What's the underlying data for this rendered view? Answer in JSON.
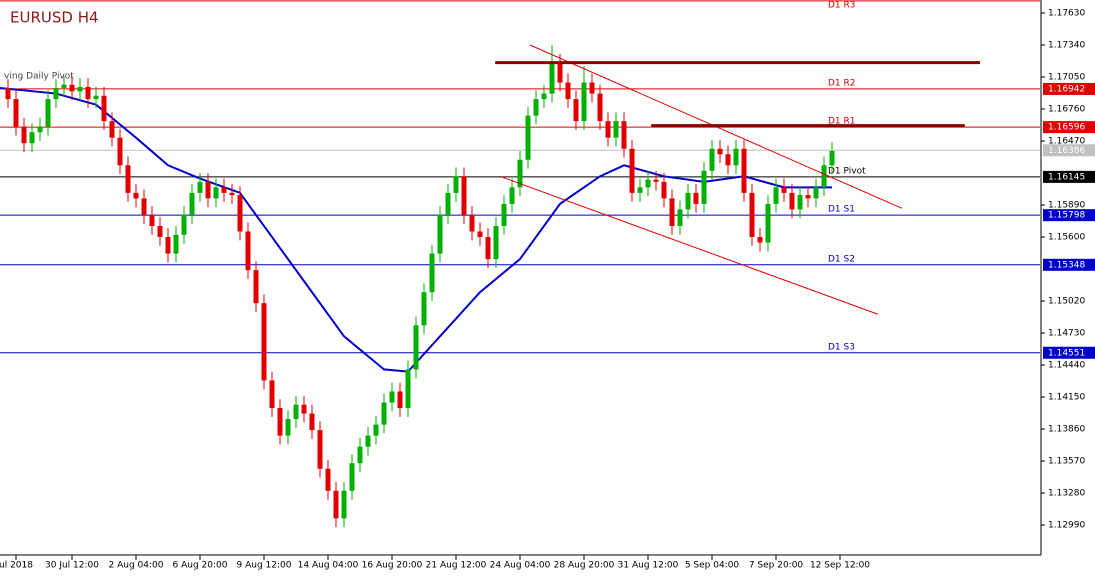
{
  "chart_data": {
    "type": "candlestick",
    "title": "EURUSD H4",
    "indicator_label": "ving Daily Pivot",
    "up_color": "#00b000",
    "down_color": "#e00000",
    "xlim": [
      -1,
      129
    ],
    "ylim": [
      1.12718,
      1.17748
    ],
    "yticks": [
      {
        "value": 1.1763,
        "label": "1.17630"
      },
      {
        "value": 1.1734,
        "label": "1.17340"
      },
      {
        "value": 1.1705,
        "label": "1.17050"
      },
      {
        "value": 1.1676,
        "label": "1.16760"
      },
      {
        "value": 1.1647,
        "label": "1.16470"
      },
      {
        "value": 1.1589,
        "label": "1.15890"
      },
      {
        "value": 1.156,
        "label": "1.15600"
      },
      {
        "value": 1.1502,
        "label": "1.15020"
      },
      {
        "value": 1.1473,
        "label": "1.14730"
      },
      {
        "value": 1.1444,
        "label": "1.14440"
      },
      {
        "value": 1.1415,
        "label": "1.14150"
      },
      {
        "value": 1.1386,
        "label": "1.13860"
      },
      {
        "value": 1.1357,
        "label": "1.13570"
      },
      {
        "value": 1.1328,
        "label": "1.13280"
      },
      {
        "value": 1.1299,
        "label": "1.12990"
      }
    ],
    "xticks": [
      {
        "value": 1,
        "label": "ul 2018"
      },
      {
        "value": 8,
        "label": "30 Jul 12:00"
      },
      {
        "value": 16,
        "label": "2 Aug 04:00"
      },
      {
        "value": 24,
        "label": "6 Aug 20:00"
      },
      {
        "value": 32,
        "label": "9 Aug 12:00"
      },
      {
        "value": 40,
        "label": "14 Aug 04:00"
      },
      {
        "value": 48,
        "label": "16 Aug 20:00"
      },
      {
        "value": 56,
        "label": "21 Aug 12:00"
      },
      {
        "value": 64,
        "label": "24 Aug 04:00"
      },
      {
        "value": 72,
        "label": "28 Aug 20:00"
      },
      {
        "value": 80,
        "label": "31 Aug 12:00"
      },
      {
        "value": 88,
        "label": "5 Sep 04:00"
      },
      {
        "value": 96,
        "label": "7 Sep 20:00"
      },
      {
        "value": 104,
        "label": "12 Sep 12:00"
      }
    ],
    "open": [
      1.1695,
      1.1685,
      1.166,
      1.1645,
      1.1655,
      1.166,
      1.1685,
      1.1695,
      1.1698,
      1.1692,
      1.1696,
      1.1685,
      1.1688,
      1.1665,
      1.165,
      1.1625,
      1.16,
      1.1595,
      1.158,
      1.157,
      1.156,
      1.1545,
      1.1562,
      1.158,
      1.16,
      1.161,
      1.1595,
      1.1605,
      1.16,
      1.1598,
      1.1565,
      1.153,
      1.15,
      1.143,
      1.1405,
      1.138,
      1.1395,
      1.1408,
      1.14,
      1.1385,
      1.135,
      1.133,
      1.1305,
      1.133,
      1.1355,
      1.137,
      1.138,
      1.139,
      1.141,
      1.142,
      1.1405,
      1.144,
      1.148,
      1.151,
      1.1545,
      1.158,
      1.16,
      1.1615,
      1.158,
      1.1565,
      1.156,
      1.154,
      1.157,
      1.159,
      1.1605,
      1.163,
      1.167,
      1.1685,
      1.169,
      1.1718,
      1.17,
      1.1685,
      1.1665,
      1.17,
      1.169,
      1.1665,
      1.165,
      1.1665,
      1.164,
      1.16,
      1.1605,
      1.1612,
      1.161,
      1.1595,
      1.157,
      1.1585,
      1.16,
      1.159,
      1.162,
      1.164,
      1.1635,
      1.1625,
      1.164,
      1.16,
      1.156,
      1.1555,
      1.159,
      1.1605,
      1.16,
      1.1585,
      1.1598,
      1.1595,
      1.1605,
      1.1625
    ],
    "high": [
      1.1703,
      1.1693,
      1.1668,
      1.1663,
      1.1668,
      1.1693,
      1.1703,
      1.1706,
      1.1706,
      1.1704,
      1.1704,
      1.1696,
      1.1696,
      1.1673,
      1.1658,
      1.1633,
      1.1608,
      1.1603,
      1.1588,
      1.1578,
      1.1568,
      1.157,
      1.1588,
      1.1608,
      1.1618,
      1.1618,
      1.1613,
      1.1613,
      1.1608,
      1.1606,
      1.1573,
      1.1538,
      1.1508,
      1.1438,
      1.1413,
      1.1403,
      1.1416,
      1.1416,
      1.1408,
      1.1393,
      1.1358,
      1.1338,
      1.1338,
      1.1363,
      1.1378,
      1.1388,
      1.1398,
      1.1418,
      1.1428,
      1.1428,
      1.1448,
      1.1488,
      1.1518,
      1.1553,
      1.1588,
      1.1608,
      1.1623,
      1.1623,
      1.1588,
      1.1573,
      1.1568,
      1.1578,
      1.1598,
      1.1613,
      1.1638,
      1.1678,
      1.1693,
      1.1698,
      1.1734,
      1.1726,
      1.1708,
      1.1693,
      1.1715,
      1.1708,
      1.1698,
      1.1673,
      1.1673,
      1.1673,
      1.1648,
      1.1613,
      1.162,
      1.162,
      1.1618,
      1.1603,
      1.1593,
      1.1608,
      1.1608,
      1.1628,
      1.1648,
      1.1648,
      1.1643,
      1.1648,
      1.1648,
      1.1608,
      1.1568,
      1.1598,
      1.1613,
      1.1613,
      1.1608,
      1.1606,
      1.1606,
      1.1613,
      1.1633,
      1.1646
    ],
    "low": [
      1.1677,
      1.1652,
      1.1637,
      1.1637,
      1.1647,
      1.1652,
      1.1677,
      1.1687,
      1.1684,
      1.1684,
      1.1677,
      1.1677,
      1.1657,
      1.1642,
      1.1617,
      1.1592,
      1.1587,
      1.1572,
      1.1562,
      1.1552,
      1.1537,
      1.1537,
      1.1554,
      1.1572,
      1.1592,
      1.1587,
      1.1587,
      1.1592,
      1.159,
      1.1557,
      1.1522,
      1.1492,
      1.1422,
      1.1397,
      1.1372,
      1.1372,
      1.1387,
      1.1392,
      1.1377,
      1.1342,
      1.1322,
      1.1297,
      1.1297,
      1.1322,
      1.1347,
      1.1362,
      1.1372,
      1.1382,
      1.1402,
      1.1397,
      1.1397,
      1.1432,
      1.1472,
      1.1502,
      1.1537,
      1.1572,
      1.1592,
      1.1572,
      1.1557,
      1.1552,
      1.1532,
      1.1532,
      1.1562,
      1.1582,
      1.1597,
      1.1622,
      1.1662,
      1.1677,
      1.1682,
      1.1692,
      1.1677,
      1.1657,
      1.1657,
      1.1682,
      1.1657,
      1.1642,
      1.1642,
      1.1632,
      1.1592,
      1.1592,
      1.1597,
      1.1602,
      1.1587,
      1.1562,
      1.1562,
      1.1577,
      1.1582,
      1.1582,
      1.1612,
      1.1627,
      1.1617,
      1.1617,
      1.1592,
      1.1552,
      1.1547,
      1.1547,
      1.1582,
      1.1592,
      1.1577,
      1.1577,
      1.1587,
      1.1587,
      1.1597,
      1.1617
    ],
    "close": [
      1.1685,
      1.166,
      1.1645,
      1.1655,
      1.166,
      1.1685,
      1.1695,
      1.1698,
      1.1692,
      1.1696,
      1.1685,
      1.1688,
      1.1665,
      1.165,
      1.1625,
      1.16,
      1.1595,
      1.158,
      1.157,
      1.156,
      1.1545,
      1.1562,
      1.158,
      1.16,
      1.161,
      1.1595,
      1.1605,
      1.16,
      1.1598,
      1.1565,
      1.153,
      1.15,
      1.143,
      1.1405,
      1.138,
      1.1395,
      1.1408,
      1.14,
      1.1385,
      1.135,
      1.133,
      1.1305,
      1.133,
      1.1355,
      1.137,
      1.138,
      1.139,
      1.141,
      1.142,
      1.1405,
      1.144,
      1.148,
      1.151,
      1.1545,
      1.158,
      1.16,
      1.1615,
      1.158,
      1.1565,
      1.156,
      1.154,
      1.157,
      1.159,
      1.1605,
      1.163,
      1.167,
      1.1685,
      1.169,
      1.1718,
      1.17,
      1.1685,
      1.1665,
      1.17,
      1.169,
      1.1665,
      1.165,
      1.1665,
      1.164,
      1.16,
      1.1605,
      1.1612,
      1.161,
      1.1595,
      1.157,
      1.1585,
      1.16,
      1.159,
      1.162,
      1.164,
      1.1635,
      1.1625,
      1.164,
      1.16,
      1.156,
      1.1555,
      1.159,
      1.1605,
      1.16,
      1.1585,
      1.1598,
      1.1595,
      1.1605,
      1.1625,
      1.1638
    ],
    "ma": {
      "color": "#0000cc",
      "x": [
        -1,
        6,
        11,
        16,
        20,
        24,
        29,
        32,
        37,
        42,
        47,
        50,
        54,
        59,
        64,
        69,
        74,
        77,
        82,
        87,
        92,
        97,
        103
      ],
      "values": [
        1.1695,
        1.169,
        1.168,
        1.165,
        1.1625,
        1.1613,
        1.16,
        1.157,
        1.152,
        1.147,
        1.144,
        1.1438,
        1.147,
        1.151,
        1.154,
        1.159,
        1.1615,
        1.1625,
        1.1615,
        1.161,
        1.1615,
        1.1605,
        1.1605
      ]
    },
    "lines": [
      {
        "x": [
          65.25,
          111.75
        ],
        "y": [
          1.1734,
          1.1586
        ],
        "color": "#e00000",
        "width": 1
      },
      {
        "x": [
          61.5,
          108.75
        ],
        "y": [
          1.1615,
          1.149
        ],
        "color": "#e00000",
        "width": 1
      },
      {
        "x": [
          60.9,
          121.5
        ],
        "y": [
          1.1718,
          1.1718
        ],
        "color": "#8b0000",
        "width": 3
      },
      {
        "x": [
          80.4,
          119.6
        ],
        "y": [
          1.1661,
          1.1661
        ],
        "color": "#8b0000",
        "width": 3
      }
    ],
    "levels": [
      {
        "name": "D1 R3",
        "value": 1.1774,
        "color": "#e00000"
      },
      {
        "name": "D1 R2",
        "value": 1.16942,
        "color": "#e00000"
      },
      {
        "name": "D1 R1",
        "value": 1.16596,
        "color": "#e00000"
      },
      {
        "value": 1.16386,
        "color": "#c0c0c0"
      },
      {
        "name": "D1 Pivot",
        "value": 1.16145,
        "color": "#000000"
      },
      {
        "name": "D1 S1",
        "value": 1.15798,
        "color": "#0000cc"
      },
      {
        "name": "D1 S2",
        "value": 1.15348,
        "color": "#0000cc"
      },
      {
        "name": "D1 S3",
        "value": 1.14551,
        "color": "#0000cc"
      }
    ]
  }
}
